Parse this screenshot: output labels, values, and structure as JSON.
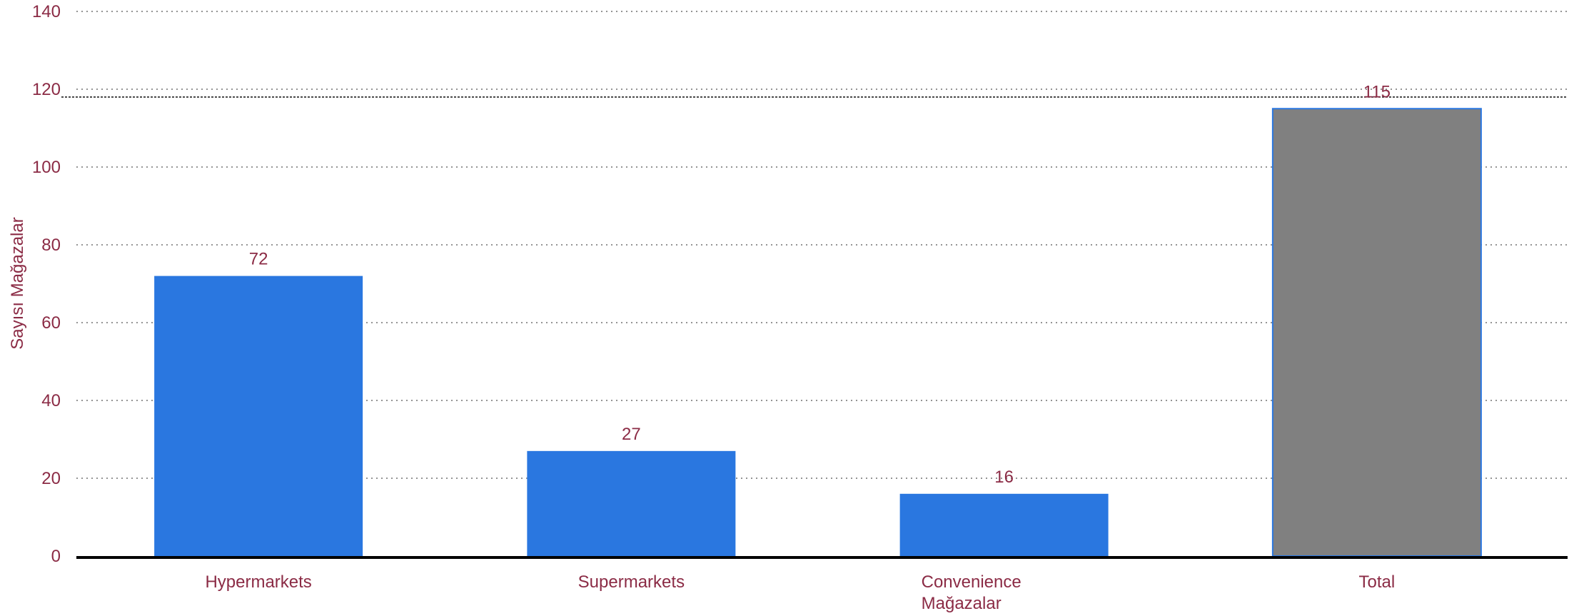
{
  "chart_data": {
    "type": "bar",
    "title": "",
    "xlabel": "",
    "ylabel": "Sayısı Mağazalar",
    "categories": [
      [
        "Hypermarkets"
      ],
      [
        "Supermarkets"
      ],
      [
        "Convenience",
        "Mağazalar"
      ],
      [
        "Total"
      ]
    ],
    "values": [
      72,
      27,
      16,
      115
    ],
    "data_labels": [
      "72",
      "27",
      "16",
      "115"
    ],
    "bar_colors": [
      "#2a77e0",
      "#2a77e0",
      "#2a77e0",
      "#808080"
    ],
    "ylim": [
      0,
      140
    ],
    "yticks": [
      0,
      20,
      40,
      60,
      80,
      100,
      120,
      140
    ],
    "reference_line": 118,
    "grid": true,
    "legend": "none",
    "colors": {
      "text": "#8b2b45",
      "grid": "#555555",
      "axis": "#000000",
      "total_border": "#2a77e0"
    }
  }
}
